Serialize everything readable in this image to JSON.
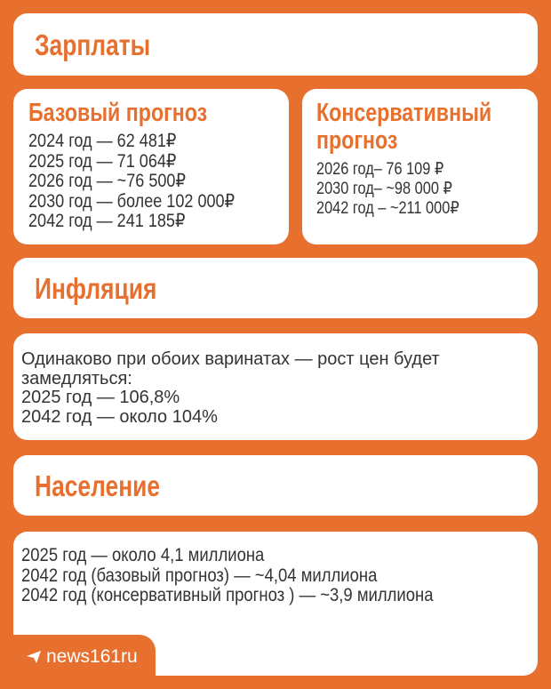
{
  "salary": {
    "title": "Зарплаты",
    "base": {
      "title": "Базовый прогноз",
      "lines": [
        "2024 год — 62 481₽",
        "2025 год — 71 064₽",
        "2026 год — ~76 500₽",
        "2030 год — более 102 000₽",
        "2042 год — 241 185₽"
      ]
    },
    "conservative": {
      "title_line1": "Консервативный",
      "title_line2": "прогноз",
      "lines": [
        "2026 год– 76 109 ₽",
        "2030 год– ~98 000 ₽",
        "2042 год – ~211 000₽"
      ]
    }
  },
  "inflation": {
    "title": "Инфляция",
    "lines": [
      "Одинаково при обоих варинатах — рост цен будет замедляться:",
      "2025 год — 106,8%",
      "2042 год — около 104%"
    ]
  },
  "population": {
    "title": "Население",
    "lines": [
      "2025 год — около 4,1 миллиона",
      "2042 год  (базовый прогноз) — ~4,04 миллиона",
      "2042 год  (консервативный прогноз ) — ~3,9 миллиона"
    ]
  },
  "brand": {
    "icon": "telegram-icon",
    "label": "news161ru"
  },
  "colors": {
    "accent": "#E8702F",
    "text": "#333333",
    "card": "#FFFFFF"
  }
}
